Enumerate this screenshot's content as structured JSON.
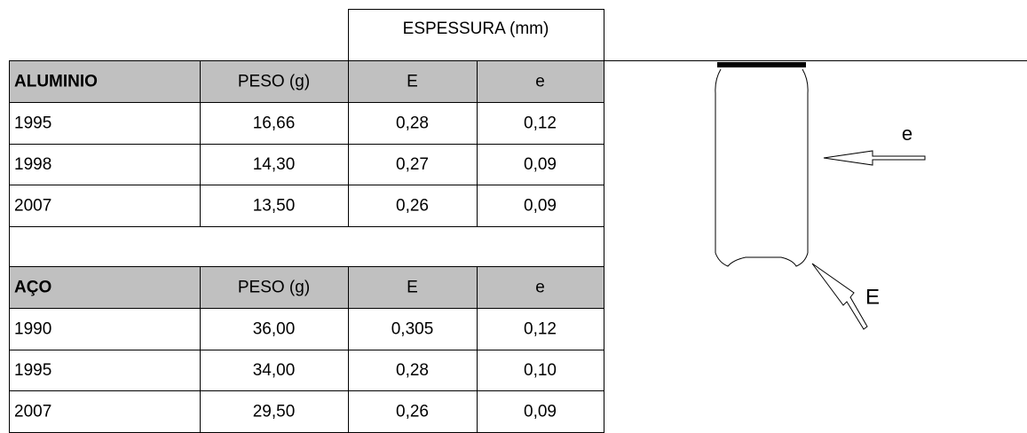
{
  "table": {
    "group_header": "ESPESSURA (mm)",
    "sections": [
      {
        "header": [
          "ALUMINIO",
          "PESO (g)",
          "E",
          "e"
        ],
        "rows": [
          [
            "1995",
            "16,66",
            "0,28",
            "0,12"
          ],
          [
            "1998",
            "14,30",
            "0,27",
            "0,09"
          ],
          [
            "2007",
            "13,50",
            "0,26",
            "0,09"
          ]
        ]
      },
      {
        "header": [
          "AÇO",
          "PESO (g)",
          "E",
          "e"
        ],
        "rows": [
          [
            "1990",
            "36,00",
            "0,305",
            "0,12"
          ],
          [
            "1995",
            "34,00",
            "0,28",
            "0,10"
          ],
          [
            "2007",
            "29,50",
            "0,26",
            "0,09"
          ]
        ]
      }
    ]
  },
  "diagram": {
    "labels": [
      "e",
      "E"
    ]
  }
}
